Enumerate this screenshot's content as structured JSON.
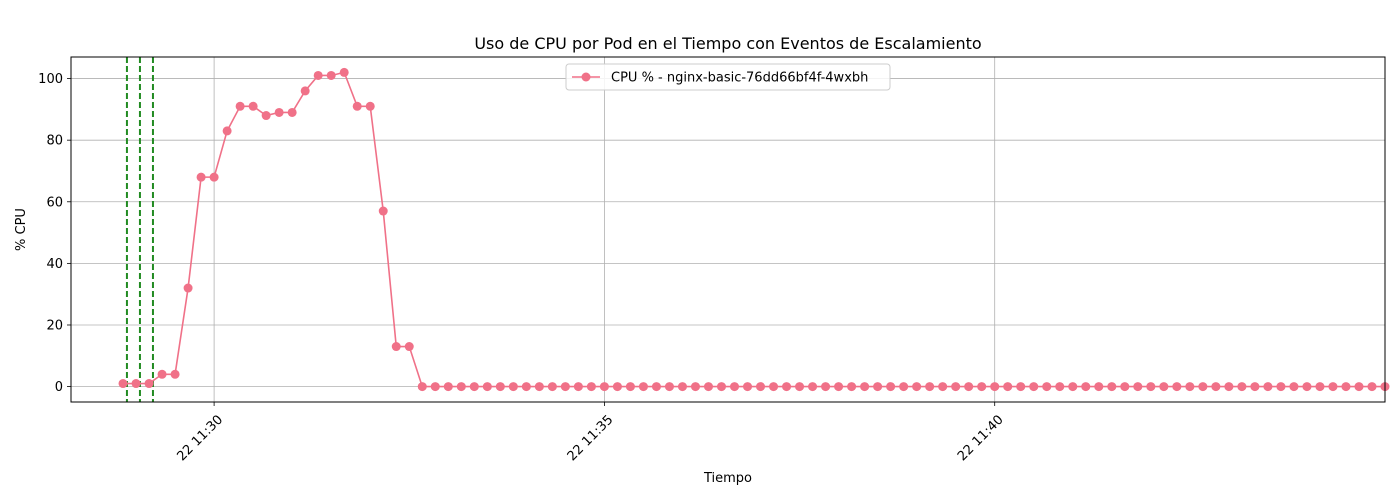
{
  "chart_data": {
    "type": "line",
    "title": "Uso de CPU por Pod en el Tiempo con Eventos de Escalamiento",
    "xlabel": "Tiempo",
    "ylabel": "% CPU",
    "xlim": [
      "11:28:10",
      "11:45:00"
    ],
    "ylim": [
      -5,
      107
    ],
    "x_ticks": [
      "11:30",
      "11:35",
      "11:40"
    ],
    "x_tick_labels": [
      "22 11:30",
      "22 11:35",
      "22 11:40"
    ],
    "y_ticks": [
      0,
      20,
      40,
      60,
      80,
      100
    ],
    "grid": true,
    "legend_position": "top-center",
    "line_color": "#f07188",
    "event_color": "#228b22",
    "series": [
      {
        "name": "CPU % - nginx-basic-76dd66bf4f-4wxbh",
        "x": [
          "11:28:50",
          "11:29:00",
          "11:29:10",
          "11:29:20",
          "11:29:30",
          "11:29:40",
          "11:29:50",
          "11:30:00",
          "11:30:10",
          "11:30:20",
          "11:30:30",
          "11:30:40",
          "11:30:50",
          "11:31:00",
          "11:31:10",
          "11:31:20",
          "11:31:30",
          "11:31:40",
          "11:31:50",
          "11:32:00",
          "11:32:10",
          "11:32:20",
          "11:32:30",
          "11:32:40",
          "11:32:50",
          "11:33:00",
          "11:33:10",
          "11:33:20",
          "11:33:30",
          "11:33:40",
          "11:33:50",
          "11:34:00",
          "11:34:10",
          "11:34:20",
          "11:34:30",
          "11:34:40",
          "11:34:50",
          "11:35:00",
          "11:35:10",
          "11:35:20",
          "11:35:30",
          "11:35:40",
          "11:35:50",
          "11:36:00",
          "11:36:10",
          "11:36:20",
          "11:36:30",
          "11:36:40",
          "11:36:50",
          "11:37:00",
          "11:37:10",
          "11:37:20",
          "11:37:30",
          "11:37:40",
          "11:37:50",
          "11:38:00",
          "11:38:10",
          "11:38:20",
          "11:38:30",
          "11:38:40",
          "11:38:50",
          "11:39:00",
          "11:39:10",
          "11:39:20",
          "11:39:30",
          "11:39:40",
          "11:39:50",
          "11:40:00",
          "11:40:10",
          "11:40:20",
          "11:40:30",
          "11:40:40",
          "11:40:50",
          "11:41:00",
          "11:41:10",
          "11:41:20",
          "11:41:30",
          "11:41:40",
          "11:41:50",
          "11:42:00",
          "11:42:10",
          "11:42:20",
          "11:42:30",
          "11:42:40",
          "11:42:50",
          "11:43:00",
          "11:43:10",
          "11:43:20",
          "11:43:30",
          "11:43:40",
          "11:43:50",
          "11:44:00",
          "11:44:10",
          "11:44:20",
          "11:44:30",
          "11:44:40",
          "11:44:50",
          "11:45:00"
        ],
        "values": [
          1,
          1,
          1,
          4,
          4,
          32,
          68,
          68,
          83,
          91,
          91,
          88,
          89,
          89,
          96,
          101,
          101,
          102,
          91,
          91,
          57,
          13,
          13,
          0,
          0,
          0,
          0,
          0,
          0,
          0,
          0,
          0,
          0,
          0,
          0,
          0,
          0,
          0,
          0,
          0,
          0,
          0,
          0,
          0,
          0,
          0,
          0,
          0,
          0,
          0,
          0,
          0,
          0,
          0,
          0,
          0,
          0,
          0,
          0,
          0,
          0,
          0,
          0,
          0,
          0,
          0,
          0,
          0,
          0,
          0,
          0,
          0,
          0,
          0,
          0,
          0,
          0,
          0,
          0,
          0,
          0,
          0,
          0,
          0,
          0,
          0,
          0,
          0,
          0,
          0,
          0,
          0,
          0,
          0,
          0,
          0,
          0,
          0
        ]
      }
    ],
    "events": [
      {
        "x": "11:28:53"
      },
      {
        "x": "11:29:03"
      },
      {
        "x": "11:29:13"
      }
    ]
  }
}
